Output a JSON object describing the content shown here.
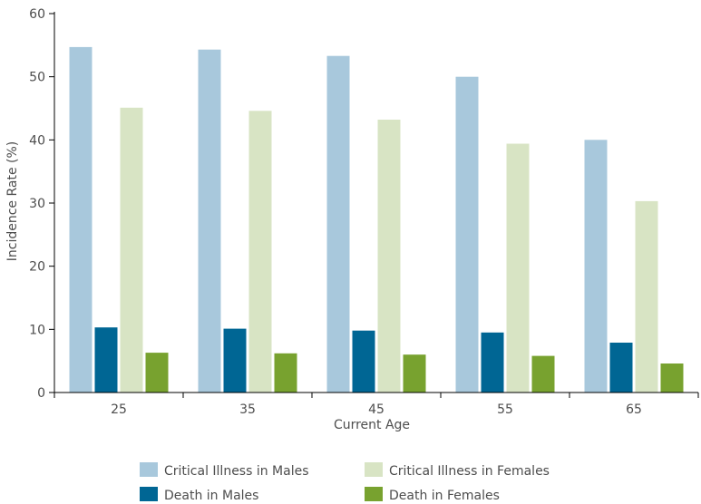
{
  "chart_data": {
    "type": "bar",
    "title": "",
    "xlabel": "Current Age",
    "ylabel": "Incidence Rate (%)",
    "ylim": [
      0,
      60
    ],
    "yticks": [
      0,
      10,
      20,
      30,
      40,
      50,
      60
    ],
    "grid": false,
    "legend_position": "bottom",
    "categories": [
      "25",
      "35",
      "45",
      "55",
      "65"
    ],
    "series": [
      {
        "name": "Critical Illness in Males",
        "color": "#a8c8dc",
        "values": [
          54.7,
          54.3,
          53.3,
          50.0,
          40.0
        ]
      },
      {
        "name": "Death in Males",
        "color": "#006694",
        "values": [
          10.3,
          10.1,
          9.8,
          9.5,
          7.9
        ]
      },
      {
        "name": "Critical Illness in Females",
        "color": "#d8e4c4",
        "values": [
          45.1,
          44.6,
          43.2,
          39.4,
          30.3
        ]
      },
      {
        "name": "Death in Females",
        "color": "#78a22f",
        "values": [
          6.3,
          6.2,
          6.0,
          5.8,
          4.6
        ]
      }
    ]
  }
}
